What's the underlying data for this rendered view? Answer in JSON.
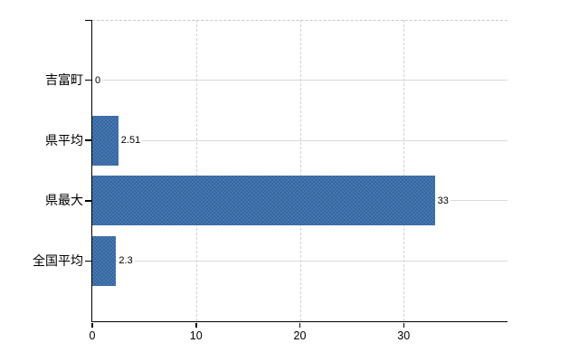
{
  "colors": {
    "bar_fill": "#3d6da9",
    "bar_fill_light": "#4878b1",
    "bar_fill_dark": "#36669e",
    "axis": "#000000",
    "gridline_solid": "#d9d9d9",
    "gridline_dashed": "#cfcfcf",
    "background": "#ffffff",
    "text": "#000000"
  },
  "chart_data": {
    "type": "bar",
    "orientation": "horizontal",
    "title": "",
    "xlabel": "",
    "ylabel": "",
    "categories": [
      "吉富町",
      "県平均",
      "県最大",
      "全国平均"
    ],
    "values": [
      0,
      2.51,
      33,
      2.3
    ],
    "value_labels": [
      "0",
      "2.51",
      "33",
      "2.3"
    ],
    "xlim": [
      0,
      40
    ],
    "xticks": [
      0,
      10,
      20,
      30
    ],
    "xtick_labels": [
      "0",
      "10",
      "20",
      "30"
    ],
    "grid": {
      "horizontal": "solid line at each category center",
      "vertical": "dashed lines at ticks 10, 20, 30",
      "plot_top": "dashed line"
    },
    "legend_position": "none"
  }
}
